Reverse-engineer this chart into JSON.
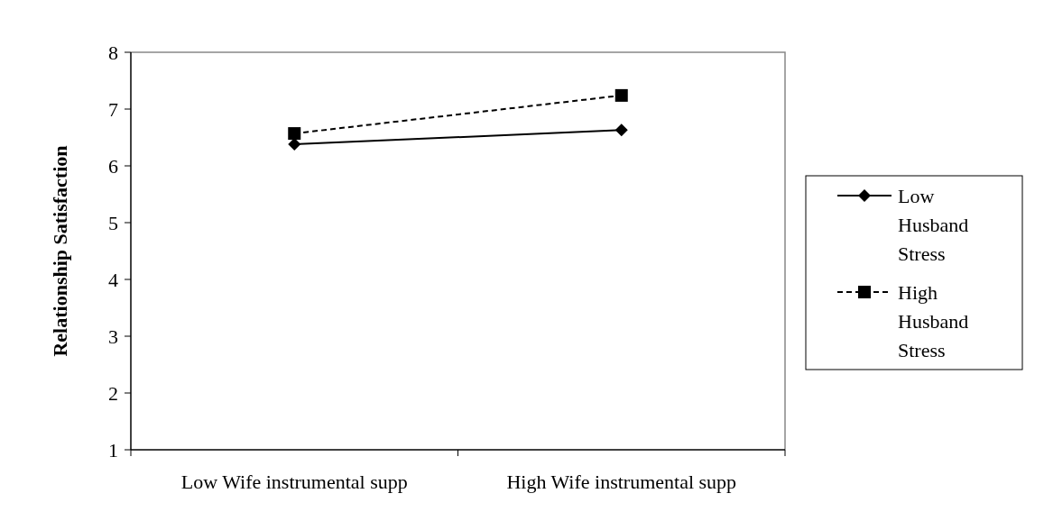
{
  "chart_data": {
    "type": "line",
    "ylabel": "Relationship Satisfaction",
    "categories": [
      "Low Wife instrumental supp",
      "High Wife instrumental supp"
    ],
    "series": [
      {
        "name": "Low Husband Stress",
        "color": "#000000",
        "values": [
          6.38,
          6.63
        ],
        "marker": "diamond",
        "line_style": "solid"
      },
      {
        "name": "High Husband Stress",
        "color": "#000000",
        "values": [
          6.57,
          7.24
        ],
        "marker": "square",
        "line_style": "dashed"
      }
    ],
    "ylim": [
      1,
      8
    ],
    "yticks": [
      1,
      2,
      3,
      4,
      5,
      6,
      7,
      8
    ],
    "grid": false,
    "legend": "right"
  }
}
